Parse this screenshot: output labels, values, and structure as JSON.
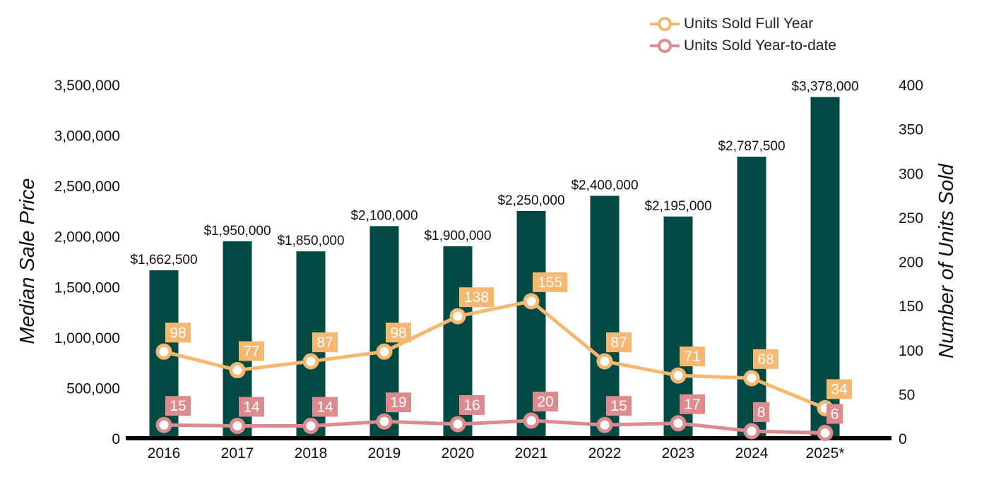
{
  "chart_data": {
    "type": "bar+line",
    "categories": [
      "2016",
      "2017",
      "2018",
      "2019",
      "2020",
      "2021",
      "2022",
      "2023",
      "2024",
      "2025*"
    ],
    "bars": {
      "axis": "left",
      "color": "#004a44",
      "values": [
        1662500,
        1950000,
        1850000,
        2100000,
        1900000,
        2250000,
        2400000,
        2195000,
        2787500,
        3378000
      ],
      "labels": [
        "$1,662,500",
        "$1,950,000",
        "$1,850,000",
        "$2,100,000",
        "$1,900,000",
        "$2,250,000",
        "$2,400,000",
        "$2,195,000",
        "$2,787,500",
        "$3,378,000"
      ]
    },
    "series": [
      {
        "name": "Units Sold Full Year",
        "axis": "right",
        "color": "#f5b870",
        "values": [
          98,
          77,
          87,
          98,
          138,
          155,
          87,
          71,
          68,
          34
        ]
      },
      {
        "name": "Units Sold Year-to-date",
        "axis": "right",
        "color": "#dd8b8e",
        "values": [
          15,
          14,
          14,
          19,
          16,
          20,
          15,
          17,
          8,
          6
        ]
      }
    ],
    "ylabel_left": "Median Sale Price",
    "ylabel_right": "Number of Units Sold",
    "ylim_left": [
      0,
      3500000
    ],
    "ylim_right": [
      0,
      400
    ],
    "left_ticks": [
      "0",
      "500,000",
      "1,000,000",
      "1,500,000",
      "2,000,000",
      "2,500,000",
      "3,000,000",
      "3,500,000"
    ],
    "right_ticks": [
      "0",
      "50",
      "100",
      "150",
      "200",
      "250",
      "300",
      "350",
      "400"
    ],
    "legend_position": "top-right",
    "grid": false
  }
}
